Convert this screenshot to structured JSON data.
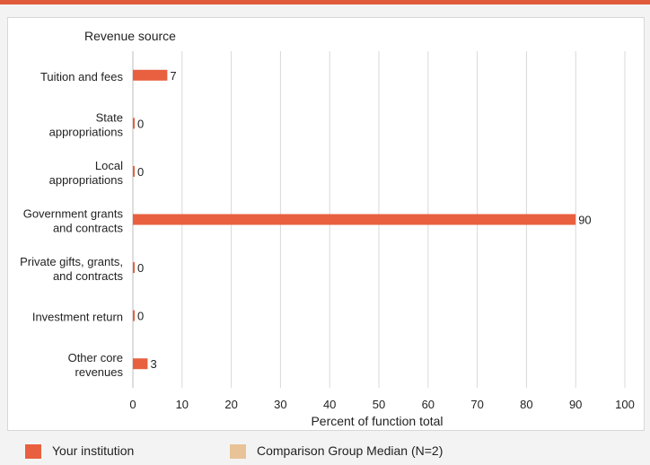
{
  "chart_data": {
    "type": "bar",
    "orientation": "horizontal",
    "title": "Revenue source",
    "xlabel": "Percent of function total",
    "xlim": [
      0,
      100
    ],
    "xticks": [
      0,
      10,
      20,
      30,
      40,
      50,
      60,
      70,
      80,
      90,
      100
    ],
    "grid": true,
    "categories": [
      [
        "Tuition and fees"
      ],
      [
        "State",
        "appropriations"
      ],
      [
        "Local",
        "appropriations"
      ],
      [
        "Government grants",
        "and contracts"
      ],
      [
        "Private gifts, grants,",
        "and contracts"
      ],
      [
        "Investment return"
      ],
      [
        "Other core",
        "revenues"
      ]
    ],
    "series": [
      {
        "name": "Your institution",
        "color": "#e8603f",
        "values": [
          7,
          0,
          0,
          90,
          0,
          0,
          3
        ]
      }
    ],
    "legend": {
      "placement": "bottom",
      "items": [
        {
          "label": "Your institution",
          "color": "#e8603f"
        },
        {
          "label": "Comparison Group Median (N=2)",
          "color": "#e8c397"
        }
      ]
    }
  }
}
